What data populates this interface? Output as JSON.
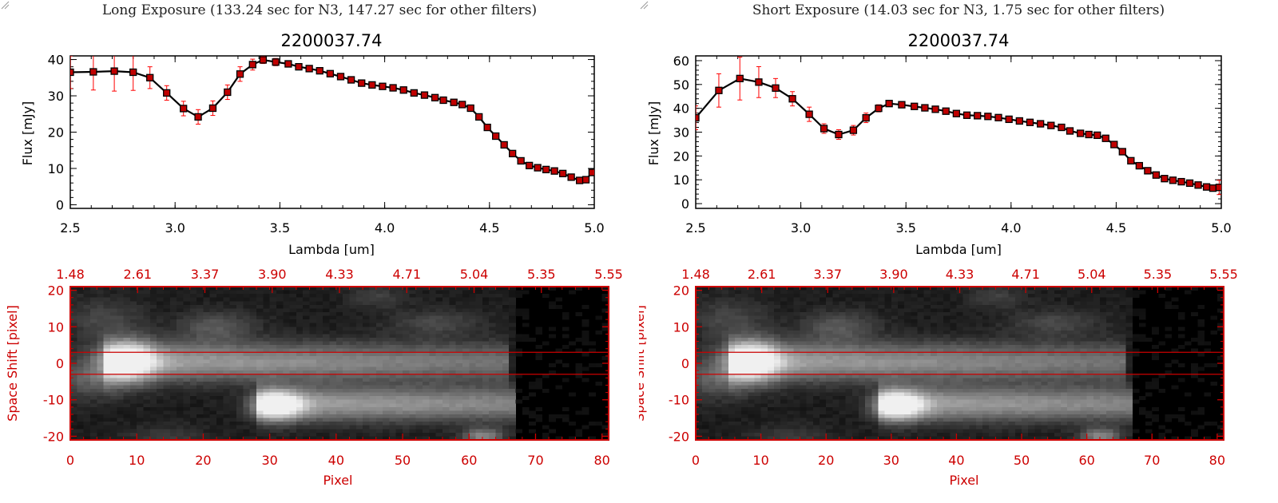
{
  "colors": {
    "axis": "#000000",
    "error_bar": "#ff0000",
    "marker_fill": "#c00000",
    "image_axis": "#cc0000",
    "slit_line": "#cc0000"
  },
  "panels": [
    {
      "exposure_title": "Long Exposure (133.24 sec for N3, 147.27 sec for other filters)",
      "chart_data": [
        {
          "type": "line",
          "title": "2200037.74",
          "xlabel": "Lambda [um]",
          "ylabel": "Flux [mJy]",
          "xlim": [
            2.5,
            5.0
          ],
          "ylim": [
            -1,
            41
          ],
          "xticks": [
            "2.5",
            "3.0",
            "3.5",
            "4.0",
            "4.5",
            "5.0"
          ],
          "yticks": [
            "0",
            "10",
            "20",
            "30",
            "40"
          ],
          "grid": false,
          "series": [
            {
              "x": [
                2.5,
                2.61,
                2.71,
                2.8,
                2.88,
                2.96,
                3.04,
                3.11,
                3.18,
                3.25,
                3.31,
                3.37,
                3.42,
                3.48,
                3.54,
                3.59,
                3.64,
                3.69,
                3.74,
                3.79,
                3.84,
                3.89,
                3.94,
                3.99,
                4.04,
                4.09,
                4.14,
                4.19,
                4.24,
                4.28,
                4.33,
                4.37,
                4.41,
                4.45,
                4.49,
                4.53,
                4.57,
                4.61,
                4.65,
                4.69,
                4.73,
                4.77,
                4.81,
                4.85,
                4.89,
                4.93,
                4.96,
                4.99
              ],
              "y": [
                36.5,
                36.6,
                36.8,
                36.5,
                35.0,
                30.8,
                26.5,
                24.2,
                26.6,
                31.0,
                36.0,
                38.6,
                39.9,
                39.3,
                38.8,
                38.0,
                37.5,
                36.9,
                36.1,
                35.3,
                34.4,
                33.5,
                33.0,
                32.6,
                32.2,
                31.6,
                30.8,
                30.2,
                29.5,
                28.8,
                28.2,
                27.6,
                26.6,
                24.2,
                21.3,
                18.9,
                16.5,
                14.1,
                12.1,
                10.8,
                10.2,
                9.7,
                9.3,
                8.6,
                7.6,
                6.7,
                6.9,
                8.9
              ],
              "yerr": [
                4.5,
                5.0,
                5.5,
                5.0,
                3.0,
                2.0,
                2.0,
                2.0,
                2.0,
                2.0,
                2.0,
                1.5,
                1.0,
                1.0,
                0.6,
                0.6,
                0.6,
                0.6,
                0.6,
                0.6,
                0.6,
                0.6,
                0.6,
                0.6,
                0.6,
                0.6,
                0.6,
                0.6,
                0.6,
                0.6,
                0.6,
                0.6,
                0.6,
                0.6,
                0.6,
                0.6,
                0.6,
                0.6,
                0.6,
                0.6,
                0.6,
                0.6,
                0.6,
                0.6,
                0.6,
                0.6,
                0.6,
                0.6
              ]
            }
          ]
        },
        {
          "type": "heatmap",
          "xlabel": "Pixel",
          "ylabel": "Space Shift [pixel]",
          "xlim": [
            0,
            81
          ],
          "ylim": [
            -21,
            21
          ],
          "xticks": [
            "0",
            "10",
            "20",
            "30",
            "40",
            "50",
            "60",
            "70",
            "80"
          ],
          "yticks": [
            "-20",
            "-10",
            "0",
            "10",
            "20"
          ],
          "top_ticks": [
            "1.48",
            "2.61",
            "3.37",
            "3.90",
            "4.33",
            "4.71",
            "5.04",
            "5.35",
            "5.55"
          ],
          "slit_lines": [
            3,
            -3
          ]
        }
      ]
    },
    {
      "exposure_title": "Short Exposure (14.03 sec for N3, 1.75 sec for other filters)",
      "chart_data": [
        {
          "type": "line",
          "title": "2200037.74",
          "xlabel": "Lambda [um]",
          "ylabel": "Flux [mJy]",
          "xlim": [
            2.5,
            5.0
          ],
          "ylim": [
            -2,
            62
          ],
          "xticks": [
            "2.5",
            "3.0",
            "3.5",
            "4.0",
            "4.5",
            "5.0"
          ],
          "yticks": [
            "0",
            "10",
            "20",
            "30",
            "40",
            "50",
            "60"
          ],
          "grid": false,
          "series": [
            {
              "x": [
                2.5,
                2.61,
                2.71,
                2.8,
                2.88,
                2.96,
                3.04,
                3.11,
                3.18,
                3.25,
                3.31,
                3.37,
                3.42,
                3.48,
                3.54,
                3.59,
                3.64,
                3.69,
                3.74,
                3.79,
                3.84,
                3.89,
                3.94,
                3.99,
                4.04,
                4.09,
                4.14,
                4.19,
                4.24,
                4.28,
                4.33,
                4.37,
                4.41,
                4.45,
                4.49,
                4.53,
                4.57,
                4.61,
                4.65,
                4.69,
                4.73,
                4.77,
                4.81,
                4.85,
                4.89,
                4.93,
                4.96,
                4.99
              ],
              "y": [
                36.0,
                47.5,
                52.5,
                51.0,
                48.5,
                44.0,
                37.5,
                31.5,
                29.0,
                30.8,
                36.0,
                40.0,
                42.0,
                41.5,
                40.8,
                40.2,
                39.6,
                38.8,
                37.8,
                37.1,
                36.9,
                36.6,
                36.1,
                35.4,
                34.7,
                34.1,
                33.5,
                32.8,
                32.0,
                30.5,
                29.5,
                29.0,
                28.7,
                27.4,
                24.8,
                21.8,
                18.0,
                15.9,
                13.8,
                12.0,
                10.5,
                9.8,
                9.2,
                8.6,
                7.8,
                7.0,
                6.5,
                6.8
              ],
              "yerr": [
                5.0,
                7.0,
                9.0,
                6.5,
                4.0,
                3.0,
                3.0,
                2.0,
                2.0,
                2.0,
                2.0,
                1.5,
                1.2,
                1.0,
                0.8,
                0.8,
                0.8,
                0.8,
                0.8,
                0.8,
                0.8,
                0.8,
                0.8,
                0.8,
                0.8,
                0.8,
                0.8,
                0.8,
                0.8,
                0.8,
                0.8,
                0.8,
                0.8,
                0.8,
                0.8,
                0.8,
                0.8,
                0.8,
                0.8,
                0.8,
                0.8,
                0.8,
                0.8,
                0.8,
                0.8,
                0.8,
                0.8,
                3.0
              ]
            }
          ]
        },
        {
          "type": "heatmap",
          "xlabel": "Pixel",
          "ylabel": "Space Shift [pixel]",
          "xlim": [
            0,
            81
          ],
          "ylim": [
            -21,
            21
          ],
          "xticks": [
            "0",
            "10",
            "20",
            "30",
            "40",
            "50",
            "60",
            "70",
            "80"
          ],
          "yticks": [
            "-20",
            "-10",
            "0",
            "10",
            "20"
          ],
          "top_ticks": [
            "1.48",
            "2.61",
            "3.37",
            "3.90",
            "4.33",
            "4.71",
            "5.04",
            "5.35",
            "5.55"
          ],
          "slit_lines": [
            3,
            -3
          ]
        }
      ]
    }
  ]
}
